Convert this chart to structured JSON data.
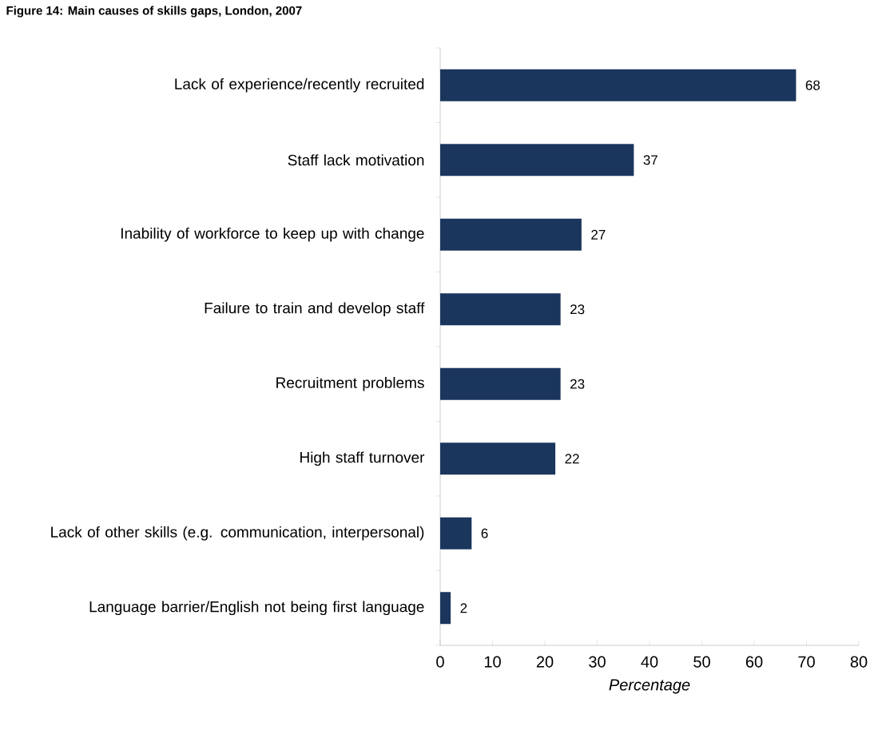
{
  "chart_data": {
    "type": "bar",
    "orientation": "horizontal",
    "title": "Figure 14: Main causes of skills gaps, London, 2007",
    "categories": [
      "Lack of experience/recently recruited",
      "Staff lack motivation",
      "Inability of workforce to keep up with change",
      "Failure to train and develop staff",
      "Recruitment problems",
      "High staff turnover",
      "Lack of other skills (e.g. communication, interpersonal)",
      "Language barrier/English not being first language"
    ],
    "values": [
      68,
      37,
      27,
      23,
      23,
      22,
      6,
      2
    ],
    "color": "#1b365d",
    "xlabel": "Percentage",
    "xlim": [
      0,
      80
    ],
    "xticks": [
      0,
      10,
      20,
      30,
      40,
      50,
      60,
      70,
      80
    ],
    "data_labels": true,
    "grid": false
  }
}
